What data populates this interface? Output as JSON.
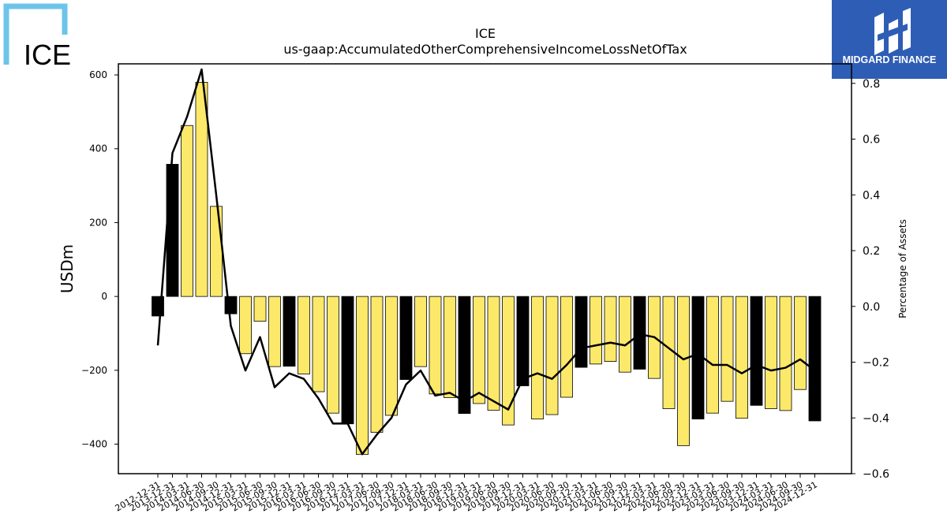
{
  "logos": {
    "left_text": "ICE",
    "right_text": "MIDGARD FINANCE",
    "right_bg": "#2e5db5",
    "left_color": "#6cc5e8"
  },
  "chart_data": {
    "type": "bar",
    "title": "ICE",
    "subtitle": "us-gaap:AccumulatedOtherComprehensiveIncomeLossNetOfTax",
    "ylabel": "USDm",
    "ylabel_right": "Percentage of Assets",
    "ylim": [
      -480,
      630
    ],
    "y2lim": [
      -0.6,
      0.87
    ],
    "yticks": [
      -400,
      -200,
      0,
      200,
      400,
      600
    ],
    "y2ticks": [
      -0.6,
      -0.4,
      -0.2,
      0.0,
      0.2,
      0.4,
      0.6,
      0.8
    ],
    "bar_colors": {
      "year_end": "#000000",
      "quarter": "#fce96a"
    },
    "categories": [
      "2012-12-31",
      "2013-12-31",
      "2014-03-31",
      "2014-06-30",
      "2014-09-30",
      "2014-12-31",
      "2015-03-31",
      "2015-06-30",
      "2015-09-30",
      "2015-12-31",
      "2016-03-31",
      "2016-06-30",
      "2016-09-30",
      "2016-12-31",
      "2017-03-31",
      "2017-06-30",
      "2017-09-30",
      "2017-12-31",
      "2018-03-31",
      "2018-06-30",
      "2018-09-30",
      "2018-12-31",
      "2019-03-31",
      "2019-06-30",
      "2019-09-30",
      "2019-12-31",
      "2020-03-31",
      "2020-06-30",
      "2020-09-30",
      "2020-12-31",
      "2021-03-31",
      "2021-06-30",
      "2021-09-30",
      "2021-12-31",
      "2022-03-31",
      "2022-06-30",
      "2022-09-30",
      "2022-12-31",
      "2023-03-31",
      "2023-06-30",
      "2023-09-30",
      "2023-12-31",
      "2024-03-31",
      "2024-06-30",
      "2024-09-30",
      "2024-12-31"
    ],
    "values": [
      -53,
      358,
      463,
      580,
      244,
      -47,
      -155,
      -67,
      -190,
      -189,
      -210,
      -258,
      -316,
      -345,
      -428,
      -368,
      -322,
      -225,
      -190,
      -264,
      -274,
      -317,
      -290,
      -308,
      -348,
      -242,
      -332,
      -320,
      -273,
      -192,
      -183,
      -176,
      -205,
      -197,
      -222,
      -304,
      -404,
      -332,
      -316,
      -284,
      -330,
      -295,
      -304,
      -309,
      -252,
      -337
    ],
    "year_end": [
      true,
      true,
      false,
      false,
      false,
      true,
      false,
      false,
      false,
      true,
      false,
      false,
      false,
      true,
      false,
      false,
      false,
      true,
      false,
      false,
      false,
      true,
      false,
      false,
      false,
      true,
      false,
      false,
      false,
      true,
      false,
      false,
      false,
      true,
      false,
      false,
      false,
      true,
      false,
      false,
      false,
      true,
      false,
      false,
      false,
      true
    ],
    "pct_of_assets": [
      -0.14,
      0.55,
      0.68,
      0.85,
      0.4,
      -0.07,
      -0.23,
      -0.11,
      -0.29,
      -0.24,
      -0.26,
      -0.33,
      -0.42,
      -0.42,
      -0.53,
      -0.46,
      -0.4,
      -0.28,
      -0.23,
      -0.32,
      -0.31,
      -0.34,
      -0.31,
      -0.34,
      -0.37,
      -0.26,
      -0.24,
      -0.26,
      -0.21,
      -0.15,
      -0.14,
      -0.13,
      -0.14,
      -0.1,
      -0.11,
      -0.15,
      -0.19,
      -0.17,
      -0.21,
      -0.21,
      -0.24,
      -0.21,
      -0.23,
      -0.22,
      -0.19,
      -0.23
    ]
  }
}
